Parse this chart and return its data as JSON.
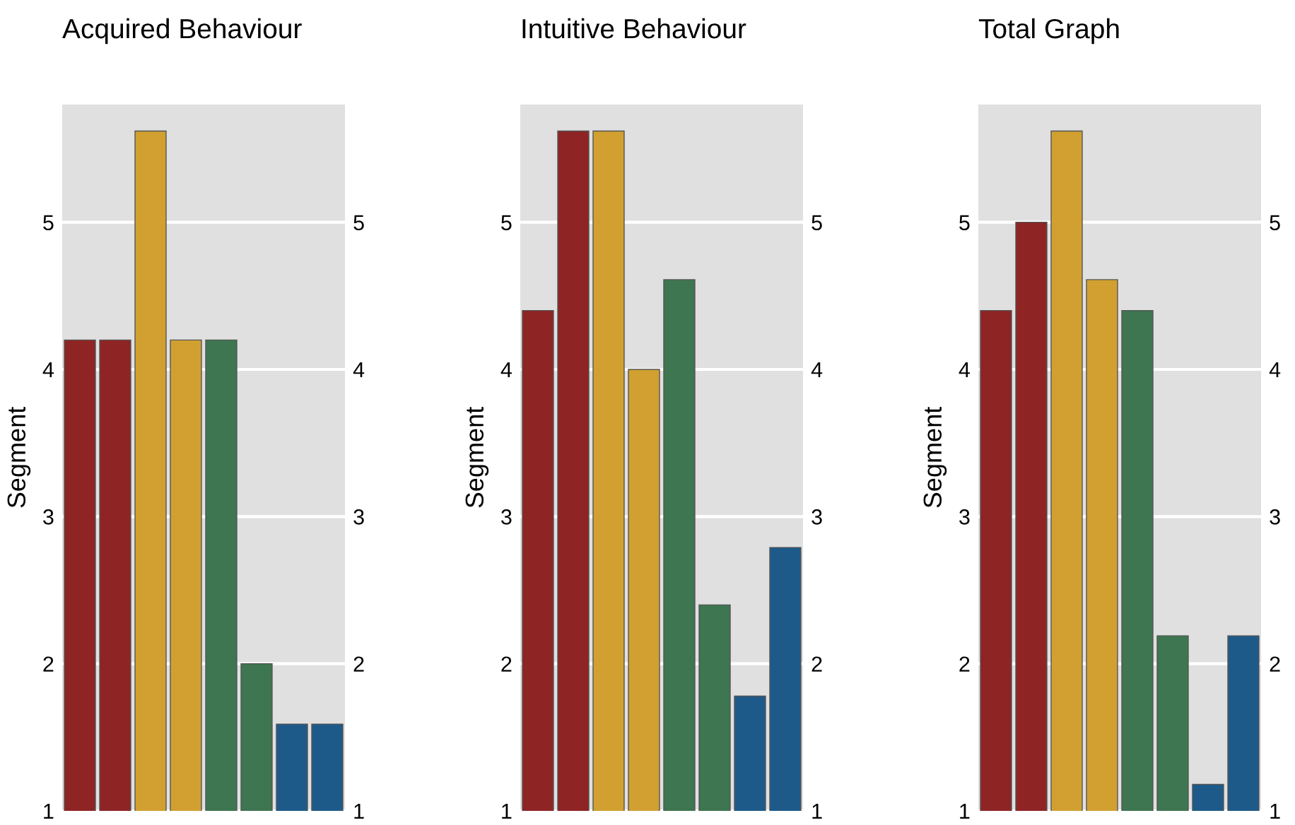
{
  "chart_data": [
    {
      "type": "bar",
      "title": "Acquired Behaviour",
      "ylabel": "Segment",
      "categories": [
        null,
        null,
        null,
        null,
        null,
        null,
        null,
        null
      ],
      "values": [
        4.2,
        4.2,
        5.62,
        4.2,
        4.2,
        2.0,
        1.59,
        1.59
      ],
      "colors": [
        "#8e2424",
        "#8e2424",
        "#d1a030",
        "#d1a030",
        "#3d7650",
        "#3d7650",
        "#1d5a8a",
        "#1d5a8a"
      ],
      "ylim": [
        1,
        5.8
      ],
      "yticks": [
        1,
        2,
        3,
        4,
        5
      ],
      "y2lim": [
        1,
        5.8
      ],
      "y2ticks": [
        1,
        2,
        3,
        4,
        5
      ],
      "grid": "y"
    },
    {
      "type": "bar",
      "title": "Intuitive Behaviour",
      "ylabel": "Segment",
      "categories": [
        null,
        null,
        null,
        null,
        null,
        null,
        null,
        null
      ],
      "values": [
        4.4,
        5.62,
        5.62,
        4.0,
        4.61,
        2.4,
        1.78,
        2.79
      ],
      "colors": [
        "#8e2424",
        "#8e2424",
        "#d1a030",
        "#d1a030",
        "#3d7650",
        "#3d7650",
        "#1d5a8a",
        "#1d5a8a"
      ],
      "ylim": [
        1,
        5.8
      ],
      "yticks": [
        1,
        2,
        3,
        4,
        5
      ],
      "y2lim": [
        1,
        5.8
      ],
      "y2ticks": [
        1,
        2,
        3,
        4,
        5
      ],
      "grid": "y"
    },
    {
      "type": "bar",
      "title": "Total Graph",
      "ylabel": "Segment",
      "categories": [
        null,
        null,
        null,
        null,
        null,
        null,
        null,
        null
      ],
      "values": [
        4.4,
        5.0,
        5.62,
        4.61,
        4.4,
        2.19,
        1.18,
        2.19
      ],
      "colors": [
        "#8e2424",
        "#8e2424",
        "#d1a030",
        "#d1a030",
        "#3d7650",
        "#3d7650",
        "#1d5a8a",
        "#1d5a8a"
      ],
      "ylim": [
        1,
        5.8
      ],
      "yticks": [
        1,
        2,
        3,
        4,
        5
      ],
      "y2lim": [
        1,
        5.8
      ],
      "y2ticks": [
        1,
        2,
        3,
        4,
        5
      ],
      "grid": "y"
    }
  ]
}
